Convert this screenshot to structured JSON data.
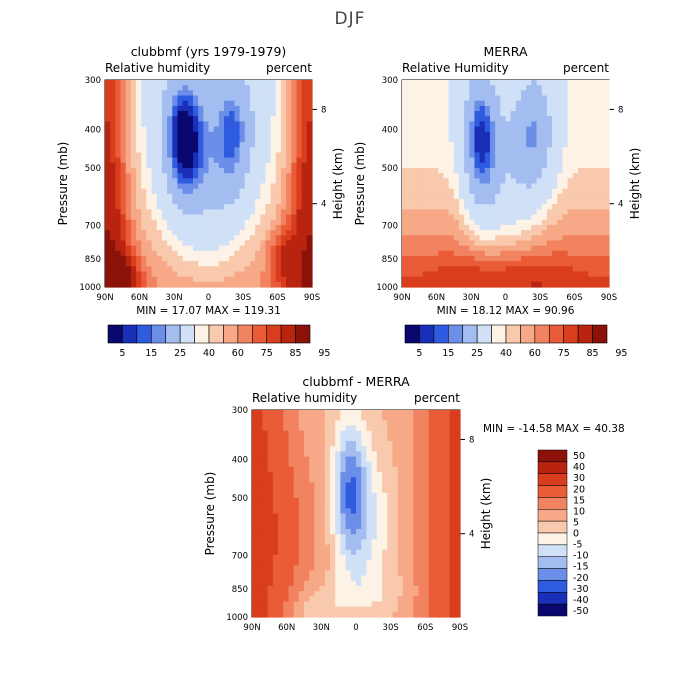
{
  "figure": {
    "title": "DJF"
  },
  "chart_data": [
    {
      "type": "heatmap",
      "title": "clubbmf (yrs 1979-1979)",
      "left_label": "Relative humidity",
      "right_label": "percent",
      "xlabel": "",
      "ylabel": "Pressure (mb)",
      "y2label": "Height (km)",
      "x_ticks": [
        "90N",
        "60N",
        "30N",
        "0",
        "30S",
        "60S",
        "90S"
      ],
      "y_ticks": [
        "300",
        "400",
        "500",
        "700",
        "850",
        "1000"
      ],
      "y2_ticks": [
        "8",
        "4"
      ],
      "y_range": [
        300,
        1000
      ],
      "stats": {
        "min_label": "MIN =",
        "min": "17.07",
        "max_label": "MAX =",
        "max": "119.31"
      },
      "colorbar": {
        "orientation": "horizontal",
        "labels": [
          "5",
          "15",
          "25",
          "40",
          "60",
          "75",
          "85",
          "95"
        ]
      }
    },
    {
      "type": "heatmap",
      "title": "MERRA",
      "left_label": "Relative Humidity",
      "right_label": "percent",
      "xlabel": "",
      "ylabel": "Pressure (mb)",
      "y2label": "Height (km)",
      "x_ticks": [
        "90N",
        "60N",
        "30N",
        "0",
        "30S",
        "60S",
        "90S"
      ],
      "y_ticks": [
        "300",
        "400",
        "500",
        "700",
        "850",
        "1000"
      ],
      "y2_ticks": [
        "8",
        "4"
      ],
      "y_range": [
        300,
        1000
      ],
      "stats": {
        "min_label": "MIN =",
        "min": "18.12",
        "max_label": "MAX =",
        "max": "90.96"
      },
      "colorbar": {
        "orientation": "horizontal",
        "labels": [
          "5",
          "15",
          "25",
          "40",
          "60",
          "75",
          "85",
          "95"
        ]
      }
    },
    {
      "type": "heatmap",
      "title": "clubbmf - MERRA",
      "left_label": "Relative humidity",
      "right_label": "percent",
      "xlabel": "",
      "ylabel": "Pressure (mb)",
      "y2label": "Height (km)",
      "x_ticks": [
        "90N",
        "60N",
        "30N",
        "0",
        "30S",
        "60S",
        "90S"
      ],
      "y_ticks": [
        "300",
        "400",
        "500",
        "700",
        "850",
        "1000"
      ],
      "y2_ticks": [
        "8",
        "4"
      ],
      "y_range": [
        300,
        1000
      ],
      "stats": {
        "min_label": "MIN =",
        "min": "-14.58",
        "max_label": "MAX =",
        "max": "40.38"
      },
      "colorbar": {
        "orientation": "vertical",
        "labels": [
          "50",
          "40",
          "30",
          "20",
          "15",
          "10",
          "5",
          "0",
          "-5",
          "-10",
          "-15",
          "-20",
          "-30",
          "-40",
          "-50"
        ]
      }
    }
  ],
  "colors": {
    "abs_scale": [
      "#08086e",
      "#1a2fb8",
      "#2e5be0",
      "#6b8ee8",
      "#a3bdf0",
      "#cfe0f7",
      "#fdf2e6",
      "#f9c9ad",
      "#f7a987",
      "#f28360",
      "#ea5b37",
      "#d93d1d",
      "#b8240f",
      "#8a1208"
    ],
    "diff_scale": [
      "#8a1208",
      "#b8240f",
      "#d93d1d",
      "#ea5b37",
      "#f28360",
      "#f7a987",
      "#f9c9ad",
      "#fdf2e6",
      "#cfe0f7",
      "#a3bdf0",
      "#6b8ee8",
      "#2e5be0",
      "#1a2fb8",
      "#08086e"
    ]
  }
}
